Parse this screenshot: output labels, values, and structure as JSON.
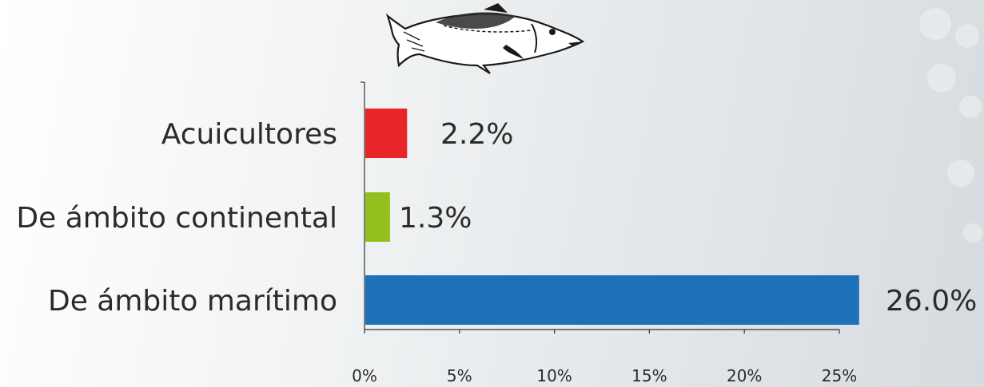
{
  "chart_data": {
    "type": "bar",
    "orientation": "horizontal",
    "categories": [
      "Acuicultores",
      "De ámbito continental",
      "De ámbito marítimo"
    ],
    "values": [
      2.2,
      1.3,
      26.0
    ],
    "value_labels": [
      "2.2%",
      "1.3%",
      "26.0%"
    ],
    "colors": [
      "#e8262a",
      "#93c01f",
      "#1d71b8"
    ],
    "xlim": [
      0,
      25
    ],
    "xticks": [
      0,
      5,
      10,
      15,
      20,
      25
    ],
    "xtick_labels": [
      "0%",
      "5%",
      "10%",
      "15%",
      "20%",
      "25%"
    ],
    "grid": false,
    "title": "",
    "xlabel": "",
    "ylabel": ""
  },
  "decoration": {
    "icon": "fish-icon"
  }
}
